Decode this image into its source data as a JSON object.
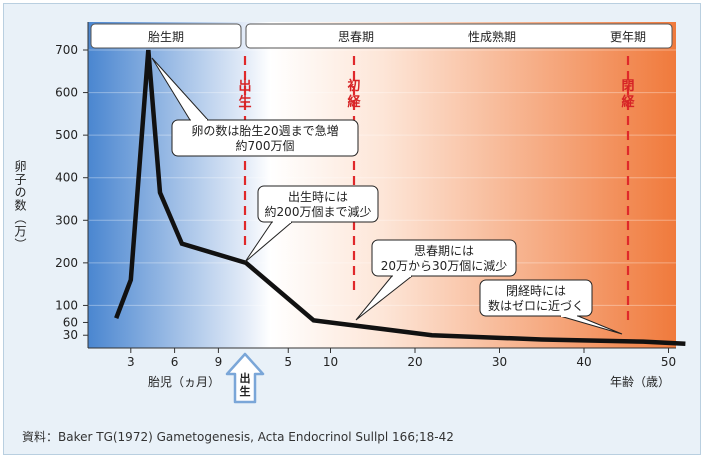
{
  "source": "資料：Baker TG(1972) Gametogenesis, Acta Endocrinol Sullpl 166;18-42",
  "chart_data": {
    "type": "line",
    "title": "",
    "ylabel": "卵子の数（万）",
    "fetal_axis_label": "胎児（ヵ月）",
    "age_axis_label": "年齢（歳）",
    "ylim": [
      0,
      720
    ],
    "yticks": [
      30,
      60,
      100,
      200,
      300,
      400,
      500,
      600,
      700
    ],
    "fetal_ticks": [
      3,
      6,
      9
    ],
    "age_ticks": [
      5,
      10,
      20,
      30,
      40,
      50
    ],
    "fetal_months_range": [
      1,
      10
    ],
    "age_years_range": [
      0,
      52
    ],
    "fetal_series": {
      "x": [
        2,
        3,
        4.2,
        5,
        6.5
      ],
      "y": [
        70,
        160,
        700,
        365,
        245
      ]
    },
    "postnatal_series": {
      "x": [
        0,
        8,
        12,
        22,
        35,
        47,
        52
      ],
      "y": [
        200,
        65,
        55,
        30,
        20,
        15,
        10
      ]
    },
    "phases": [
      {
        "label": "胎生期"
      },
      {
        "label": "思春期"
      },
      {
        "label": "性成熟期"
      },
      {
        "label": "更年期"
      }
    ],
    "markers": [
      {
        "label": "出生",
        "age": 0
      },
      {
        "label": "初経",
        "age": 13
      },
      {
        "label": "閉経",
        "age": 50
      }
    ],
    "birth_arrow_label": "出生",
    "annotations": [
      {
        "lines": [
          "卵の数は胎生20週まで急増",
          "約700万個"
        ]
      },
      {
        "lines": [
          "出生時には",
          "約200万個まで減少"
        ]
      },
      {
        "lines": [
          "思春期には",
          "20万から30万個に減少"
        ]
      },
      {
        "lines": [
          "閉経時には",
          "数はゼロに近づく"
        ]
      }
    ]
  }
}
